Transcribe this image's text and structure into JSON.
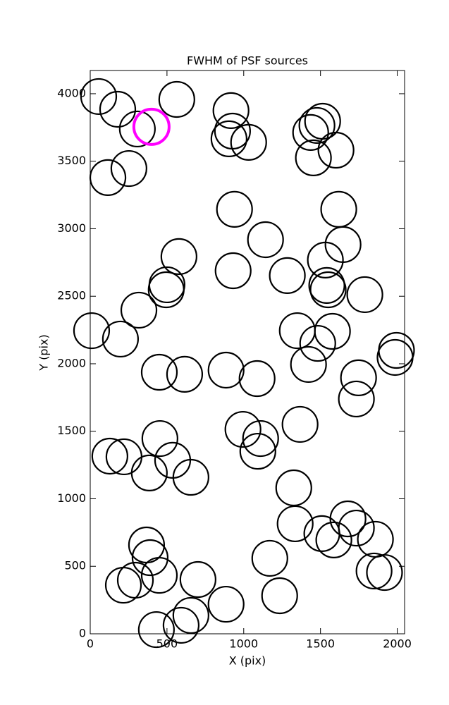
{
  "chart_data": {
    "type": "scatter",
    "title": "FWHM of PSF sources",
    "xlabel": "X (pix)",
    "ylabel": "Y (pix)",
    "xlim": [
      0,
      2048
    ],
    "ylim": [
      0,
      4172
    ],
    "xticks": [
      0,
      500,
      1000,
      1500,
      2000
    ],
    "yticks": [
      0,
      500,
      1000,
      1500,
      2000,
      2500,
      3000,
      3500,
      4000
    ],
    "series": [
      {
        "color": "#000000",
        "x": [
          55,
          179,
          307,
          564,
          252,
          115,
          917,
          927,
          904,
          1032,
          1514,
          1477,
          1436,
          1454,
          1601,
          940,
          1619,
          1142,
          1647,
          1532,
          578,
          931,
          1284,
          500,
          495,
          1541,
          1550,
          1789,
          317,
          9,
          197,
          1349,
          1578,
          1482,
          1422,
          1995,
          1986,
          450,
          615,
          885,
          1087,
          1748,
          1734,
          1367,
          995,
          1110,
          1092,
          454,
          128,
          220,
          537,
          385,
          656,
          1326,
          1335,
          1509,
          1587,
          1679,
          1734,
          1858,
          1849,
          1917,
          367,
          390,
          450,
          294,
          216,
          702,
          1170,
          1234,
          885,
          656,
          592,
          431
        ],
        "y": [
          3979,
          3885,
          3739,
          3958,
          3446,
          3379,
          3875,
          3723,
          3666,
          3640,
          3796,
          3765,
          3713,
          3525,
          3582,
          3144,
          3144,
          2919,
          2883,
          2768,
          2794,
          2689,
          2653,
          2585,
          2548,
          2580,
          2548,
          2512,
          2397,
          2245,
          2183,
          2245,
          2240,
          2151,
          1995,
          2099,
          2047,
          1937,
          1922,
          1953,
          1890,
          1896,
          1739,
          1551,
          1514,
          1446,
          1352,
          1446,
          1316,
          1311,
          1285,
          1191,
          1159,
          1081,
          815,
          742,
          695,
          851,
          783,
          700,
          465,
          454,
          658,
          564,
          433,
          397,
          360,
          402,
          559,
          282,
          219,
          136,
          63,
          31
        ]
      },
      {
        "color": "#ff00ff",
        "x": [
          399
        ],
        "y": [
          3755
        ]
      }
    ]
  }
}
